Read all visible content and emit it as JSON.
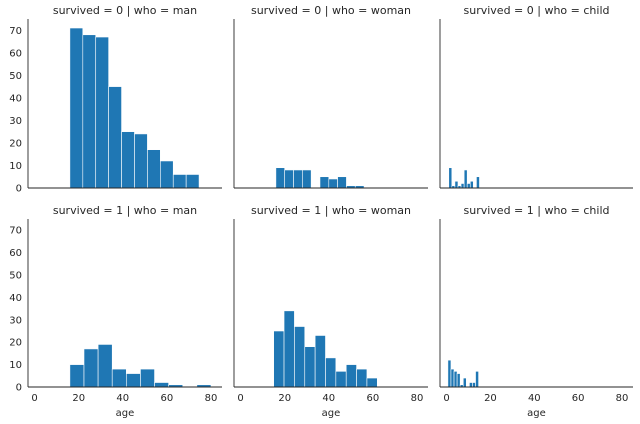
{
  "chart_data": {
    "type": "bar",
    "kind": "histogram-facet-grid",
    "xlabel": "age",
    "ylabel": "",
    "xlim": [
      -3,
      85
    ],
    "ylim": [
      0,
      75
    ],
    "x_ticks": [
      0,
      20,
      40,
      60,
      80
    ],
    "y_ticks": [
      0,
      10,
      20,
      30,
      40,
      50,
      60,
      70
    ],
    "bar_color": "#1f77b4",
    "panels": [
      {
        "title": "survived = 0 | who = man",
        "bin_width": 5.86,
        "bins": [
          {
            "x0": 16.0,
            "value": 71
          },
          {
            "x0": 21.86,
            "value": 68
          },
          {
            "x0": 27.72,
            "value": 67
          },
          {
            "x0": 33.58,
            "value": 45
          },
          {
            "x0": 39.44,
            "value": 25
          },
          {
            "x0": 45.3,
            "value": 24
          },
          {
            "x0": 51.16,
            "value": 17
          },
          {
            "x0": 57.02,
            "value": 12
          },
          {
            "x0": 62.88,
            "value": 6
          },
          {
            "x0": 68.74,
            "value": 6
          }
        ]
      },
      {
        "title": "survived = 0 | who = woman",
        "bin_width": 4.0,
        "bins": [
          {
            "x0": 16.0,
            "value": 9
          },
          {
            "x0": 20.0,
            "value": 8
          },
          {
            "x0": 24.0,
            "value": 8
          },
          {
            "x0": 28.0,
            "value": 8
          },
          {
            "x0": 32.0,
            "value": 0
          },
          {
            "x0": 36.0,
            "value": 5
          },
          {
            "x0": 40.0,
            "value": 4
          },
          {
            "x0": 44.0,
            "value": 5
          },
          {
            "x0": 48.0,
            "value": 1
          },
          {
            "x0": 52.0,
            "value": 1
          }
        ]
      },
      {
        "title": "survived = 0 | who = child",
        "bin_width": 1.4,
        "bins": [
          {
            "x0": 1.0,
            "value": 9
          },
          {
            "x0": 2.4,
            "value": 1
          },
          {
            "x0": 3.8,
            "value": 3
          },
          {
            "x0": 5.2,
            "value": 1
          },
          {
            "x0": 6.6,
            "value": 2
          },
          {
            "x0": 8.0,
            "value": 8
          },
          {
            "x0": 9.4,
            "value": 2
          },
          {
            "x0": 10.8,
            "value": 3
          },
          {
            "x0": 12.2,
            "value": 0
          },
          {
            "x0": 13.6,
            "value": 5
          }
        ]
      },
      {
        "title": "survived = 1 | who = man",
        "bin_width": 6.4,
        "bins": [
          {
            "x0": 16.0,
            "value": 10
          },
          {
            "x0": 22.4,
            "value": 17
          },
          {
            "x0": 28.8,
            "value": 19
          },
          {
            "x0": 35.2,
            "value": 8
          },
          {
            "x0": 41.6,
            "value": 6
          },
          {
            "x0": 48.0,
            "value": 8
          },
          {
            "x0": 54.4,
            "value": 2
          },
          {
            "x0": 60.8,
            "value": 1
          },
          {
            "x0": 67.2,
            "value": 0
          },
          {
            "x0": 73.6,
            "value": 1
          }
        ]
      },
      {
        "title": "survived = 1 | who = woman",
        "bin_width": 4.7,
        "bins": [
          {
            "x0": 15.0,
            "value": 25
          },
          {
            "x0": 19.7,
            "value": 34
          },
          {
            "x0": 24.4,
            "value": 27
          },
          {
            "x0": 29.1,
            "value": 18
          },
          {
            "x0": 33.8,
            "value": 23
          },
          {
            "x0": 38.5,
            "value": 13
          },
          {
            "x0": 43.2,
            "value": 7
          },
          {
            "x0": 47.9,
            "value": 10
          },
          {
            "x0": 52.6,
            "value": 8
          },
          {
            "x0": 57.3,
            "value": 4
          }
        ]
      },
      {
        "title": "survived = 1 | who = child",
        "bin_width": 1.4,
        "bins": [
          {
            "x0": 0.6,
            "value": 12
          },
          {
            "x0": 2.0,
            "value": 8
          },
          {
            "x0": 3.4,
            "value": 7
          },
          {
            "x0": 4.8,
            "value": 6
          },
          {
            "x0": 6.2,
            "value": 1
          },
          {
            "x0": 7.6,
            "value": 4
          },
          {
            "x0": 9.0,
            "value": 0
          },
          {
            "x0": 10.4,
            "value": 2
          },
          {
            "x0": 11.8,
            "value": 2
          },
          {
            "x0": 13.2,
            "value": 7
          }
        ]
      }
    ]
  }
}
